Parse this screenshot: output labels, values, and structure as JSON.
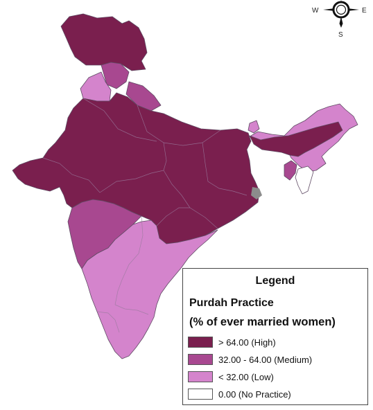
{
  "compass": {
    "west": "W",
    "east": "E",
    "south": "S"
  },
  "legend": {
    "title": "Legend",
    "subtitle_line1": "Purdah Practice",
    "subtitle_line2": "(% of ever married women)",
    "items": [
      {
        "label": "> 64.00 (High)",
        "color": "#7a1f4e"
      },
      {
        "label": "32.00 - 64.00 (Medium)",
        "color": "#a84890"
      },
      {
        "label": "< 32.00 (Low)",
        "color": "#d484cc"
      },
      {
        "label": "0.00 (No Practice)",
        "color": "#ffffff"
      }
    ]
  }
}
